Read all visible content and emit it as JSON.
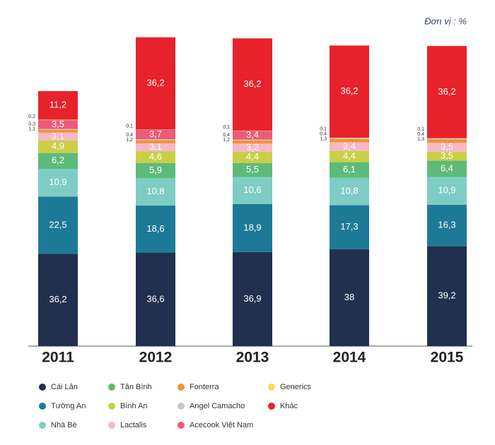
{
  "chart_data": {
    "type": "stacked_bar",
    "unit": "Đơn vị : %",
    "categories": [
      "2011",
      "2012",
      "2013",
      "2014",
      "2015"
    ],
    "ylim": [
      0,
      122
    ],
    "series": [
      {
        "name": "Cái Lân",
        "color": "#22304f",
        "values": [
          36.2,
          36.6,
          36.9,
          38,
          39.2
        ],
        "value_labels": [
          "36,2",
          "36,6",
          "36,9",
          "38",
          "39,2"
        ]
      },
      {
        "name": "Tường An",
        "color": "#1d7a96",
        "values": [
          22.5,
          18.6,
          18.9,
          17.3,
          16.3
        ],
        "value_labels": [
          "22,5",
          "18,6",
          "18,9",
          "17,3",
          "16,3"
        ]
      },
      {
        "name": "Nhà Bè",
        "color": "#7ecdc4",
        "values": [
          10.9,
          10.8,
          10.6,
          10.8,
          10.9
        ],
        "value_labels": [
          "10,9",
          "10,8",
          "10,6",
          "10,8",
          "10,9"
        ]
      },
      {
        "name": "Tân Bình",
        "color": "#5dbb7a",
        "values": [
          6.2,
          5.9,
          5.5,
          6.1,
          6.4
        ],
        "value_labels": [
          "6,2",
          "5,9",
          "5,5",
          "6,1",
          "6,4"
        ]
      },
      {
        "name": "Bình An",
        "color": "#c9cf45",
        "values": [
          4.9,
          4.6,
          4.4,
          4.4,
          3.5
        ],
        "value_labels": [
          "4,9",
          "4,6",
          "4,4",
          "4,4",
          "3,5"
        ]
      },
      {
        "name": "Lactalis",
        "color": "#f6b8c6",
        "values": [
          3.1,
          3.1,
          3.2,
          3.4,
          3.5
        ],
        "value_labels": [
          "3,1",
          "3,1",
          "3,2",
          "3,4",
          "3,5"
        ]
      },
      {
        "name": "Fonterra",
        "color": "#f39230",
        "values": [
          1.1,
          1.2,
          1.2,
          1.3,
          1.3
        ],
        "value_labels": [
          "1,1",
          "1,2",
          "1,2",
          "1,3",
          "1,3"
        ]
      },
      {
        "name": "Angel Camacho",
        "color": "#c8c8c8",
        "values": [
          0.3,
          0.4,
          0.4,
          0.4,
          0.4
        ],
        "value_labels": [
          "0,3",
          "0,4",
          "0,4",
          "0,4",
          "0,4"
        ]
      },
      {
        "name": "Acecook Việt Nam",
        "color": "#ee5a7b",
        "values": [
          3.5,
          3.7,
          3.4,
          null,
          null
        ],
        "value_labels": [
          "3,5",
          "3,7",
          "3,4",
          null,
          null
        ]
      },
      {
        "name": "Generics",
        "color": "#f7dd55",
        "values": [
          0.2,
          0.1,
          0.1,
          0.1,
          0.1
        ],
        "value_labels": [
          "0,2",
          "0,1",
          "0,1",
          "0,1",
          "0,1"
        ]
      },
      {
        "name": "Khác",
        "color": "#e8222a",
        "values": [
          11.2,
          36.2,
          36.2,
          36.2,
          36.2
        ],
        "value_labels": [
          "11,2",
          "36,2",
          "36,2",
          "36,2",
          "36,2"
        ]
      }
    ]
  }
}
